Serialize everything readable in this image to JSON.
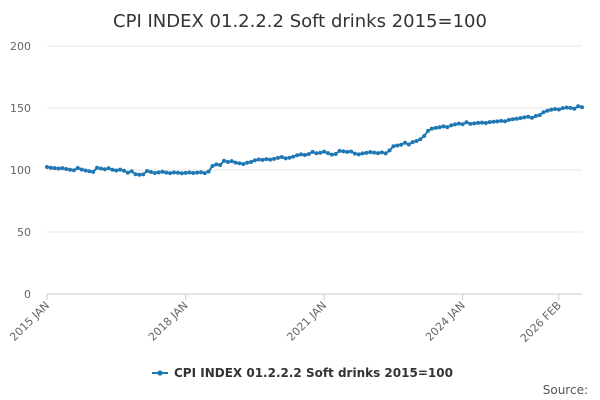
{
  "chart_data": {
    "type": "line",
    "title": "CPI INDEX 01.2.2.2 Soft drinks 2015=100",
    "xlabel": "",
    "ylabel": "",
    "ylim": [
      0,
      200
    ],
    "yticks": [
      0,
      50,
      100,
      150,
      200
    ],
    "xticks": [
      {
        "label": "2015 JAN",
        "index": 0
      },
      {
        "label": "2018 JAN",
        "index": 36
      },
      {
        "label": "2021 JAN",
        "index": 72
      },
      {
        "label": "2024 JAN",
        "index": 108
      },
      {
        "label": "2026 FEB",
        "index": 133
      }
    ],
    "grid": true,
    "legend_position": "bottom-center",
    "series": [
      {
        "name": "CPI INDEX 01.2.2.2 Soft drinks 2015=100",
        "color": "#1f78b4",
        "start": "2015 JAN",
        "values": [
          102.4,
          101.8,
          101.5,
          101.2,
          101.5,
          100.8,
          100.2,
          99.8,
          101.6,
          100.4,
          99.6,
          99.0,
          98.5,
          101.8,
          101.2,
          100.6,
          101.4,
          100.2,
          99.6,
          100.3,
          99.4,
          97.8,
          99.0,
          96.6,
          96.2,
          96.5,
          99.2,
          98.4,
          97.6,
          98.1,
          98.6,
          97.9,
          97.5,
          98.0,
          97.8,
          97.4,
          97.7,
          98.0,
          97.6,
          97.9,
          98.2,
          97.5,
          98.8,
          103.2,
          104.5,
          104.0,
          107.5,
          106.4,
          107.2,
          105.9,
          105.4,
          104.8,
          105.8,
          106.5,
          107.8,
          108.5,
          108.2,
          108.8,
          108.4,
          109.0,
          109.8,
          110.5,
          109.4,
          109.9,
          110.8,
          111.9,
          112.6,
          112.1,
          112.8,
          114.6,
          113.5,
          113.9,
          114.8,
          113.6,
          112.4,
          112.9,
          115.4,
          115.0,
          114.6,
          114.9,
          113.2,
          112.6,
          113.4,
          113.8,
          114.4,
          114.0,
          113.6,
          114.2,
          113.4,
          115.8,
          119.2,
          119.8,
          120.4,
          122.0,
          120.6,
          122.5,
          123.4,
          124.8,
          127.4,
          131.6,
          133.4,
          134.0,
          134.5,
          135.2,
          134.6,
          136.0,
          136.8,
          137.4,
          136.9,
          138.5,
          137.2,
          137.6,
          138.0,
          138.2,
          137.9,
          138.6,
          138.9,
          139.2,
          139.6,
          139.3,
          140.4,
          140.9,
          141.3,
          141.8,
          142.4,
          142.9,
          142.1,
          143.5,
          144.3,
          146.6,
          147.8,
          148.6,
          149.2,
          148.8,
          149.9,
          150.4,
          150.1,
          149.4,
          151.4,
          150.6
        ]
      }
    ],
    "source_label": "Source:"
  }
}
